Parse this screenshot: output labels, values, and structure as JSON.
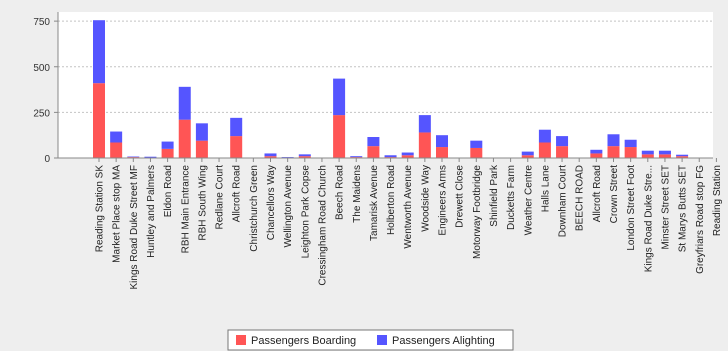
{
  "chart_data": {
    "type": "bar",
    "stacked": true,
    "title": "",
    "xlabel": "",
    "ylabel": "",
    "ylim": [
      0,
      800
    ],
    "yticks": [
      0,
      250,
      500,
      750
    ],
    "grid": true,
    "legend_position": "bottom",
    "categories": [
      "Reading Station SK",
      "Market Place stop MA",
      "Kings Road Duke Street MF",
      "Huntley and Palmers",
      "Eldon Road",
      "RBH Main Entrance",
      "RBH South Wing",
      "Redlane Court",
      "Allcroft Road",
      "Christchurch Green",
      "Chancellors Way",
      "Wellington Avenue",
      "Leighton Park Copse",
      "Cressingham Road Church",
      "Beech Road",
      "The Maidens",
      "Tamarisk Avenue",
      "Holberton Road",
      "Wentworth Avenue",
      "Woodside Way",
      "Engineers Arms",
      "Drewett Close",
      "Motorway Footbridge",
      "Shinfield Park",
      "Ducketts Farm",
      "Weather Centre",
      "Halls Lane",
      "Downham Court",
      "BEECH ROAD",
      "Allcroft Road",
      "Crown Street",
      "London Street Foot",
      "Kings Road Duke Stre...",
      "Minster Street SET",
      "St Marys Butts SET",
      "Greyfriars Road stop FG",
      "Reading Station"
    ],
    "series": [
      {
        "name": "Passengers Boarding",
        "color": "#ff5555",
        "values": [
          410,
          85,
          5,
          2,
          50,
          210,
          95,
          0,
          120,
          0,
          10,
          2,
          10,
          0,
          235,
          5,
          65,
          5,
          15,
          140,
          60,
          0,
          55,
          0,
          0,
          15,
          85,
          65,
          0,
          25,
          65,
          60,
          20,
          20,
          10,
          0,
          0
        ]
      },
      {
        "name": "Passengers Alighting",
        "color": "#5555ff",
        "values": [
          345,
          60,
          3,
          5,
          40,
          180,
          95,
          0,
          100,
          2,
          15,
          3,
          10,
          0,
          200,
          5,
          50,
          10,
          15,
          95,
          65,
          0,
          40,
          0,
          0,
          20,
          70,
          55,
          0,
          20,
          65,
          40,
          20,
          20,
          8,
          0,
          0
        ]
      }
    ]
  }
}
